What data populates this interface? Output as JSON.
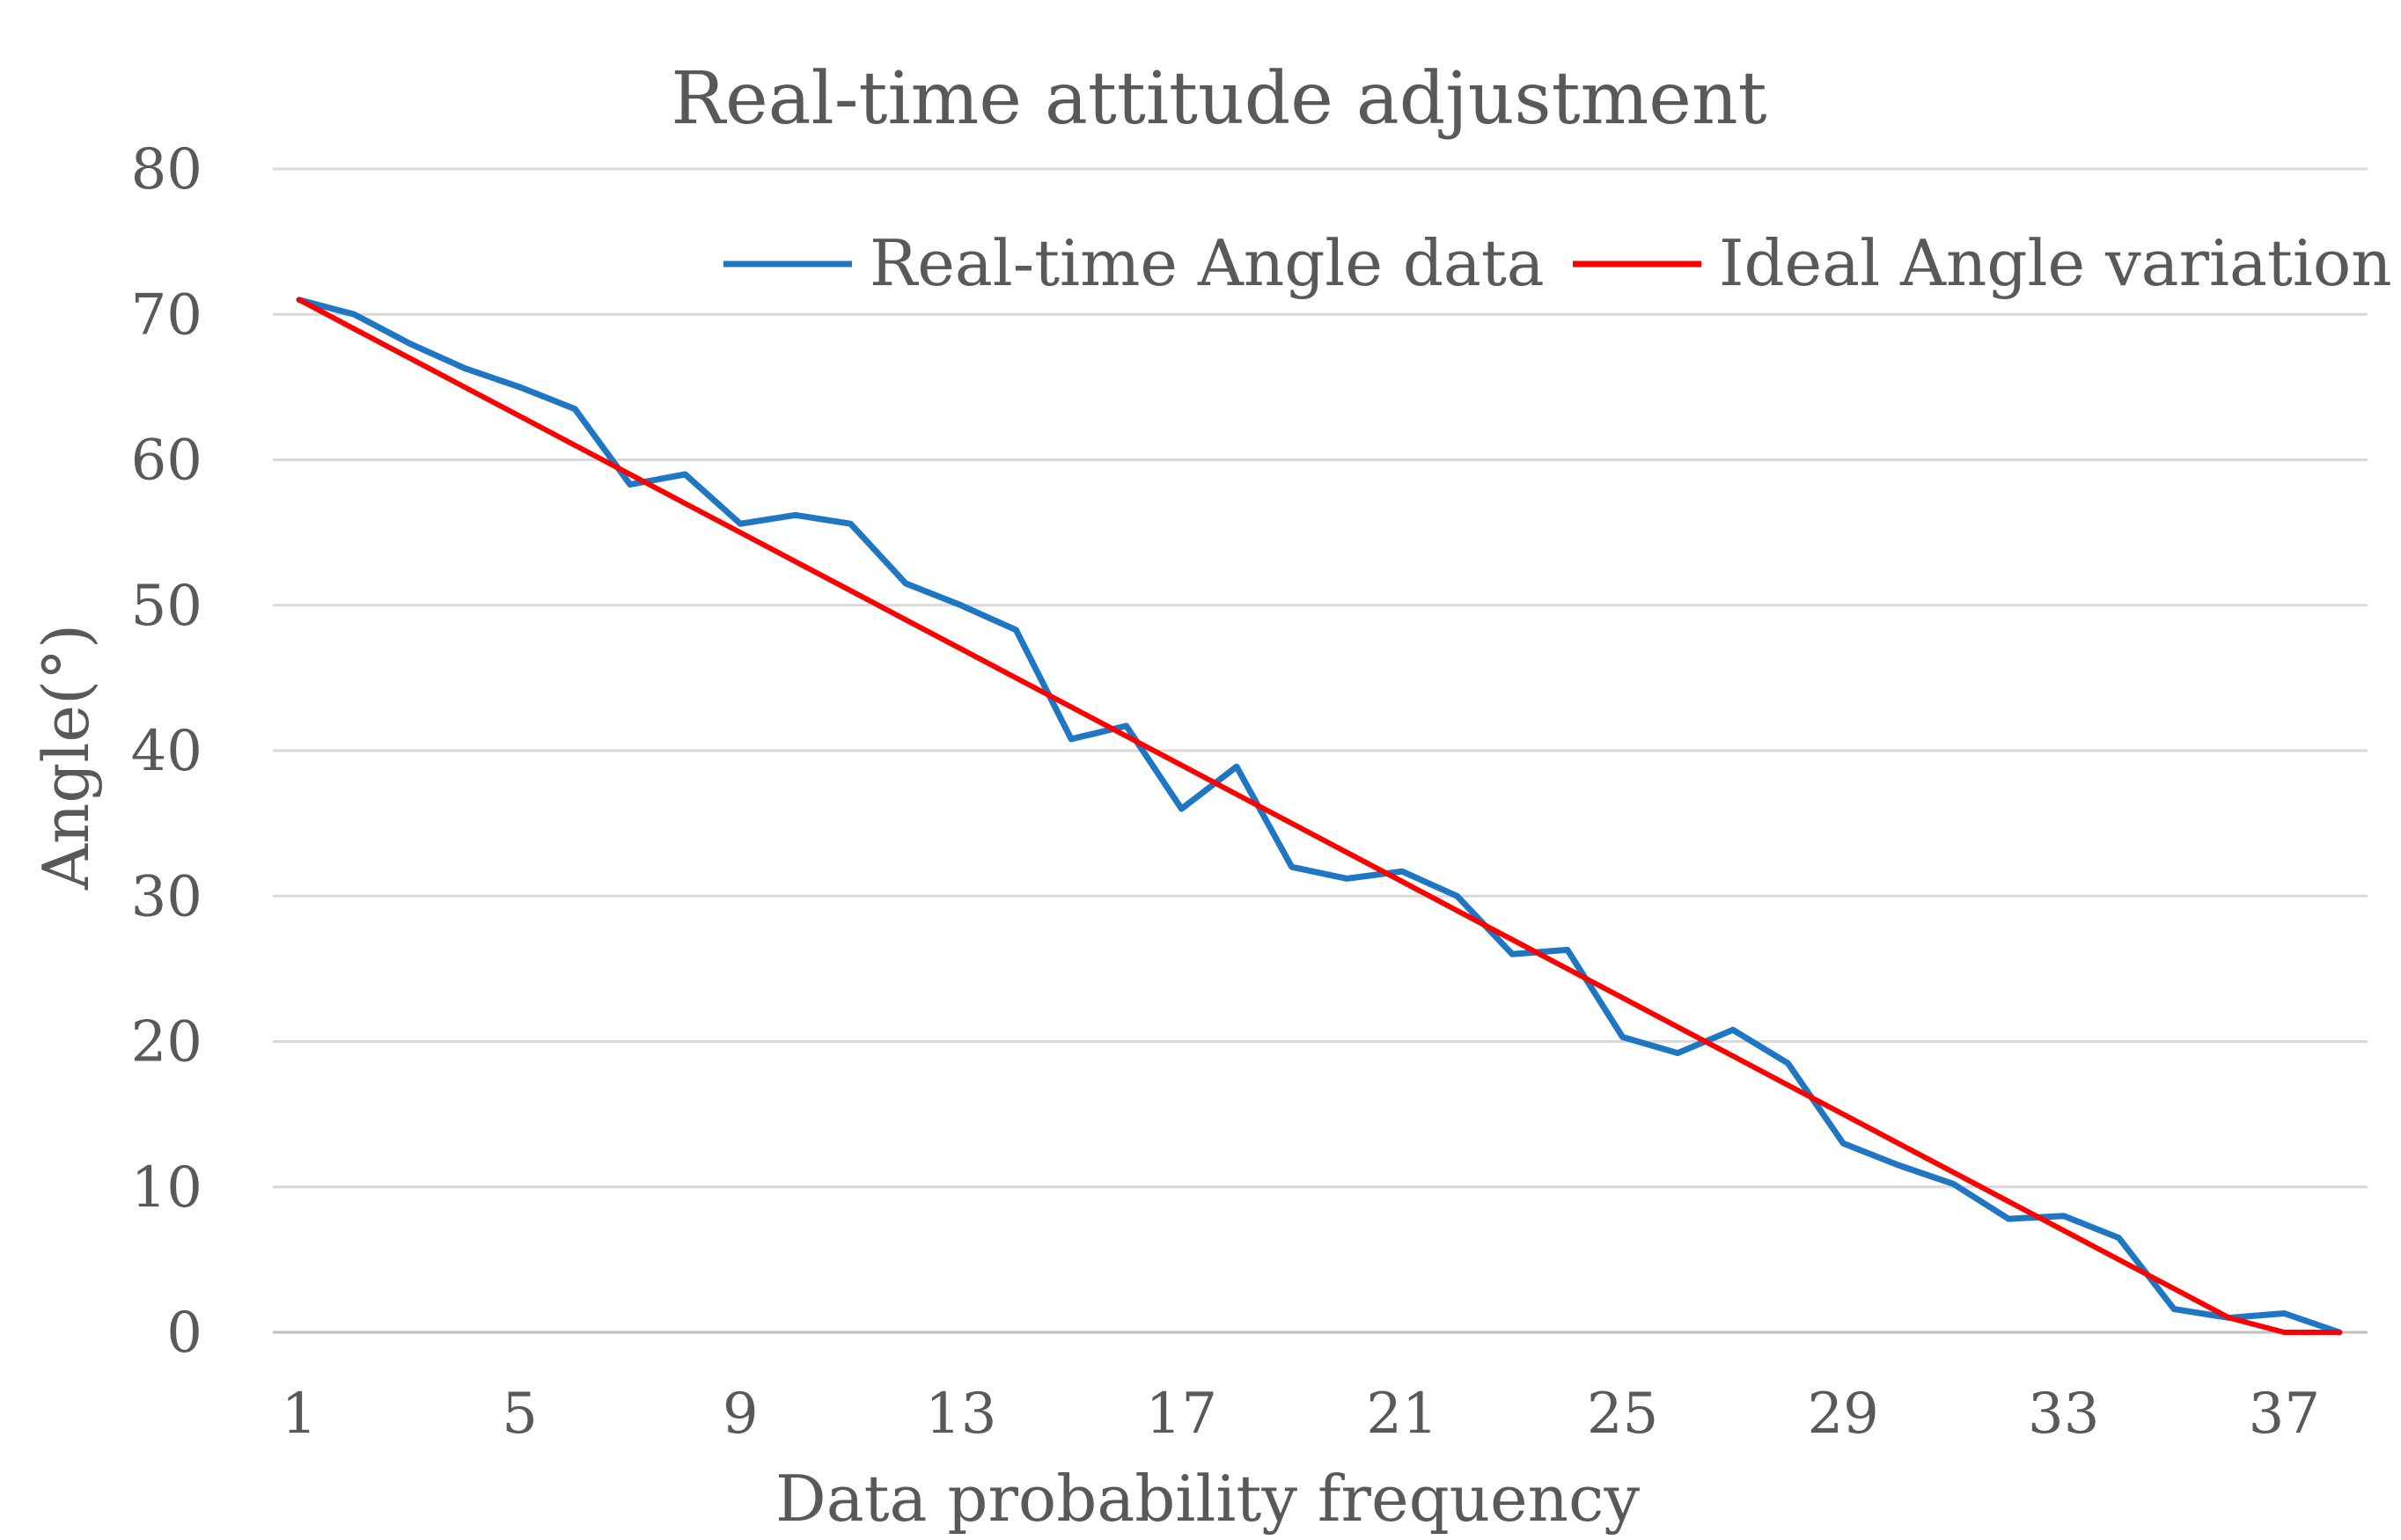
{
  "chart_data": {
    "type": "line",
    "title": "Real-time attitude adjustment",
    "xlabel": "Data probability frequency",
    "ylabel": "Angle(°)",
    "ylim": [
      0,
      80
    ],
    "yticks": [
      "0",
      "10",
      "20",
      "30",
      "40",
      "50",
      "60",
      "70",
      "80"
    ],
    "x": [
      1,
      2,
      3,
      4,
      5,
      6,
      7,
      8,
      9,
      10,
      11,
      12,
      13,
      14,
      15,
      16,
      17,
      18,
      19,
      20,
      21,
      22,
      23,
      24,
      25,
      26,
      27,
      28,
      29,
      30,
      31,
      32,
      33,
      34,
      35,
      36,
      37,
      38
    ],
    "xtick_labels": [
      "1",
      "5",
      "9",
      "13",
      "17",
      "21",
      "25",
      "29",
      "33",
      "37"
    ],
    "xtick_values": [
      1,
      5,
      9,
      13,
      17,
      21,
      25,
      29,
      33,
      37
    ],
    "grid": true,
    "legend_position": "top-right",
    "series": [
      {
        "name": "Real-time Angle data",
        "color": "#1f77c4",
        "values": [
          71,
          70,
          68,
          66.3,
          65,
          63.5,
          58.3,
          59,
          55.6,
          56.2,
          55.6,
          51.5,
          50,
          48.3,
          40.8,
          41.7,
          36,
          38.9,
          32,
          31.2,
          31.7,
          30,
          26,
          26.3,
          20.3,
          19.2,
          20.8,
          18.5,
          13,
          11.5,
          10.2,
          7.8,
          8,
          6.5,
          1.6,
          1,
          1.3,
          0
        ]
      },
      {
        "name": "Ideal Angle variation",
        "color": "#ff0000",
        "values": [
          71,
          69,
          67,
          65,
          63,
          61,
          59,
          57,
          55,
          53,
          51,
          49,
          47,
          45,
          43,
          41,
          39,
          37,
          35,
          33,
          31,
          29,
          27,
          25,
          23,
          21,
          19,
          17,
          15,
          13,
          11,
          9,
          7,
          5,
          3,
          1,
          0,
          0
        ]
      }
    ]
  }
}
